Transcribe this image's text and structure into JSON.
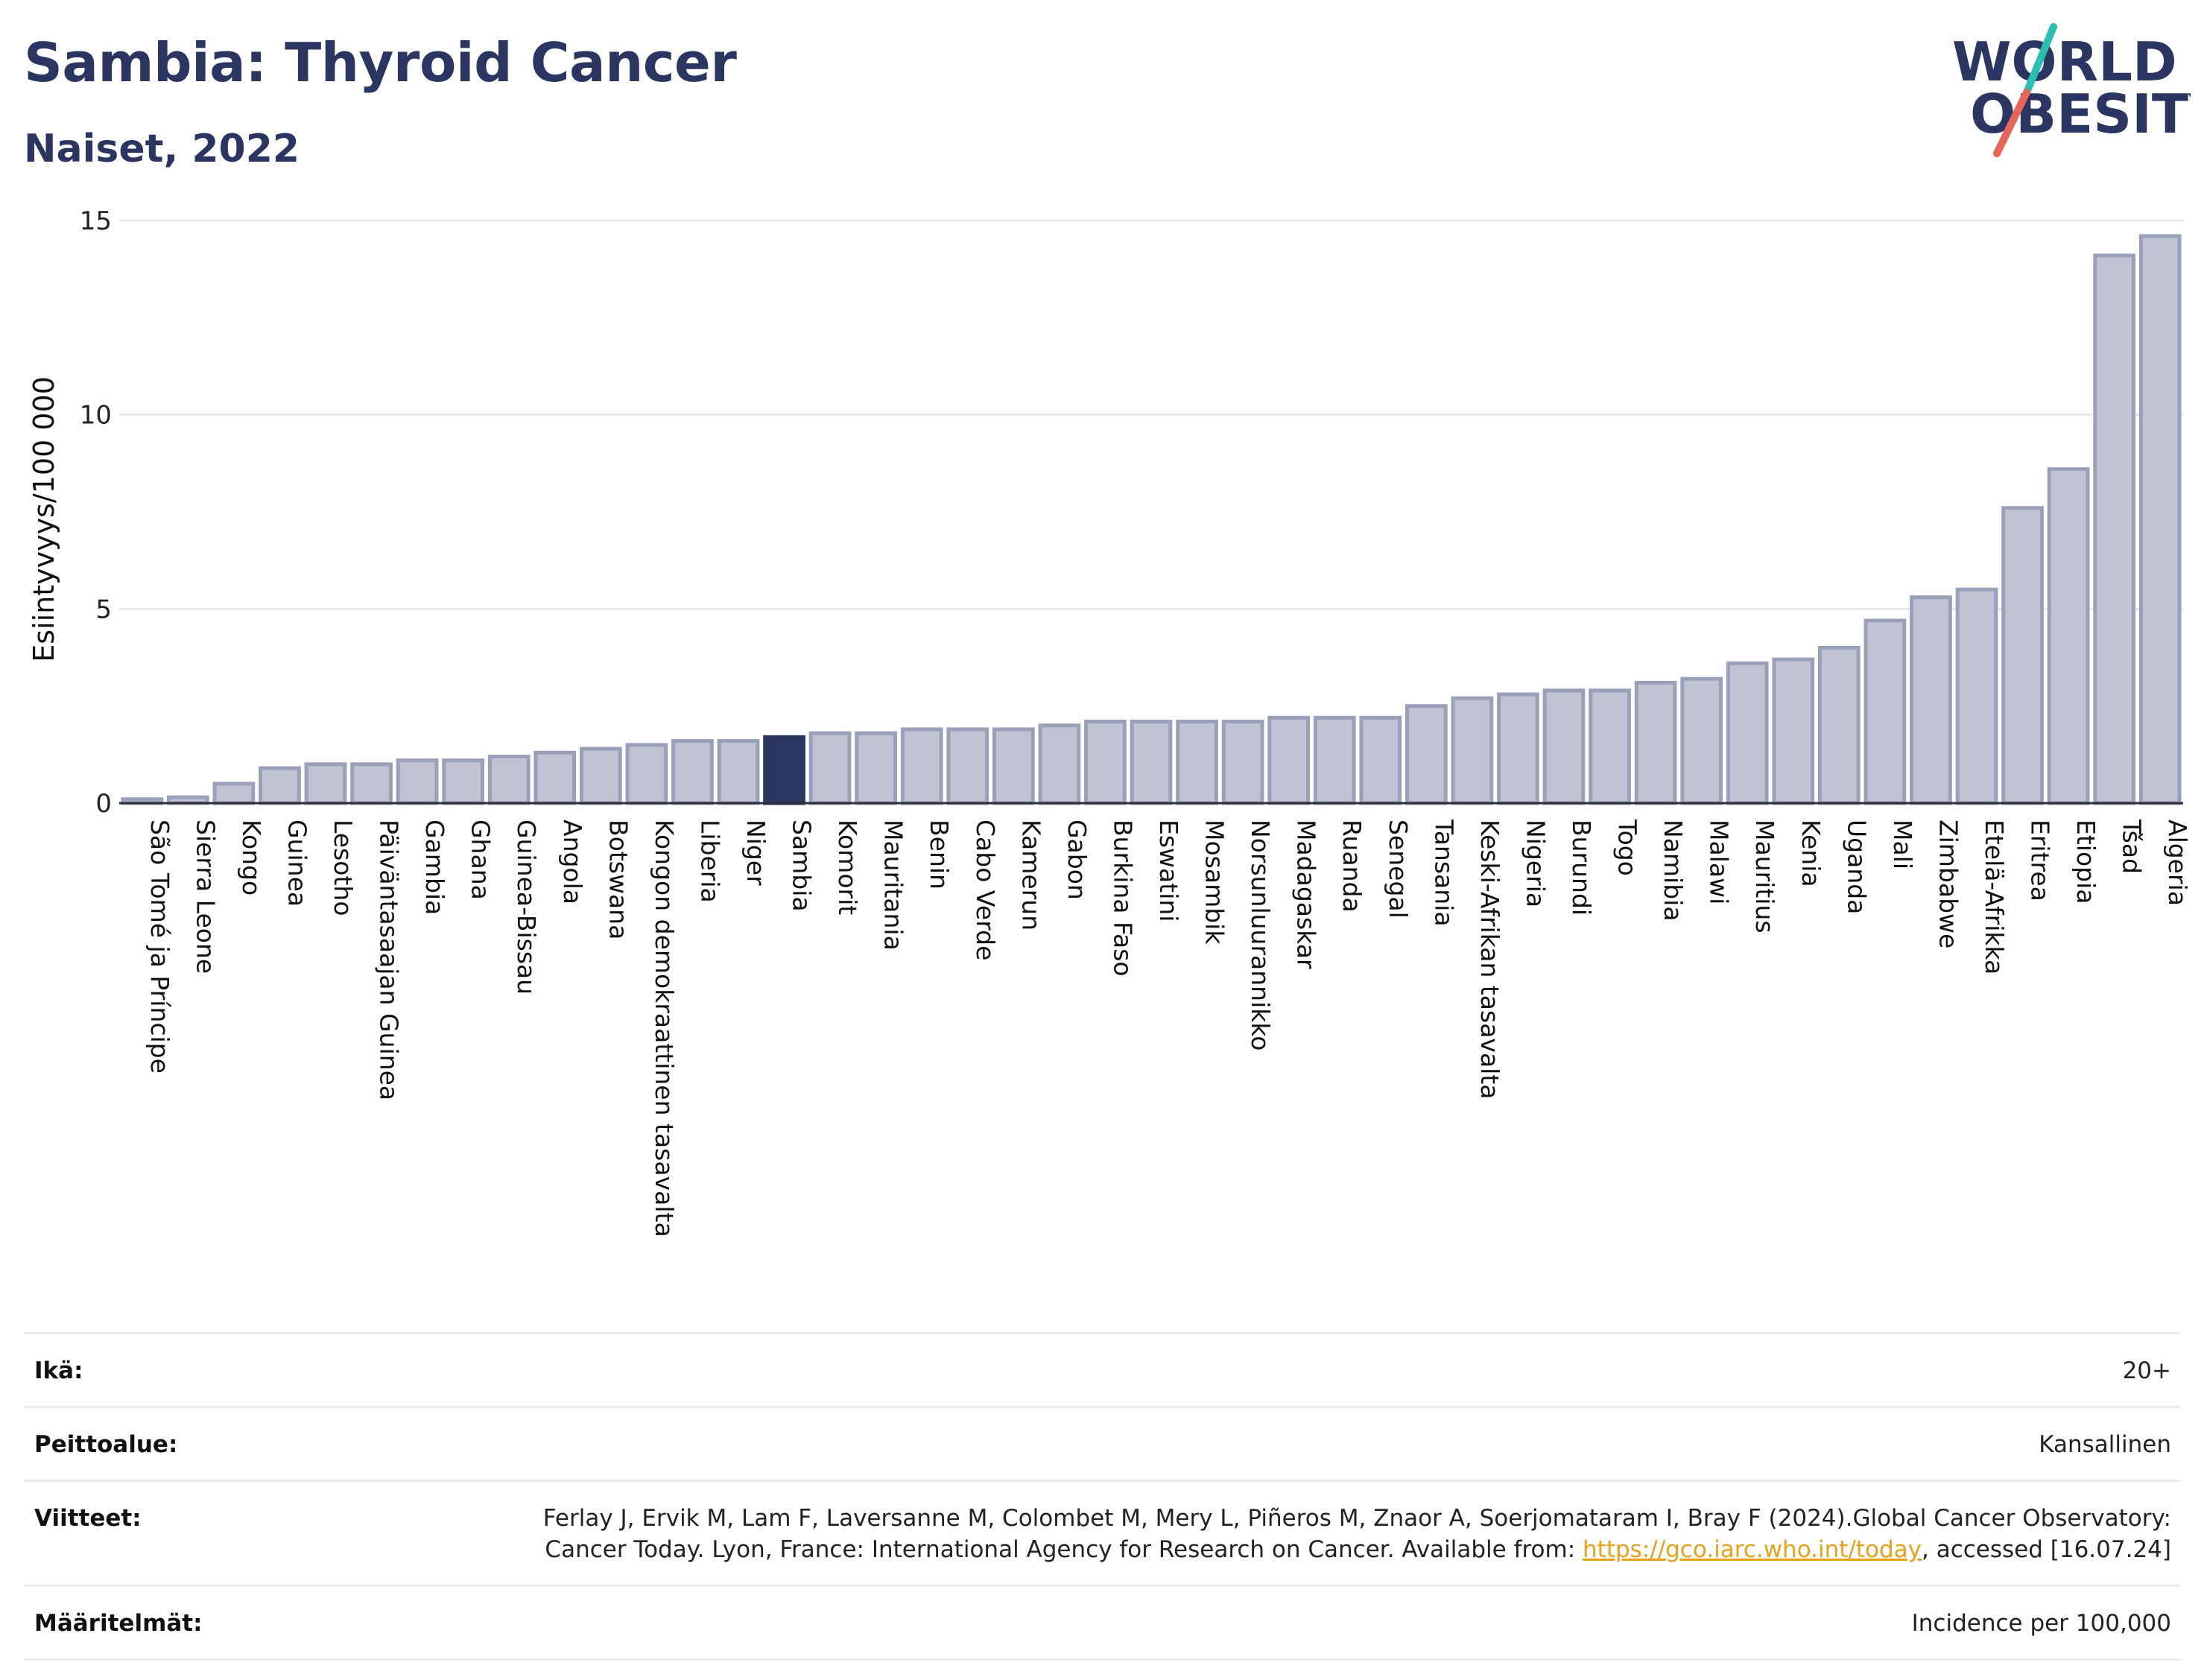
{
  "header": {
    "title": "Sambia: Thyroid Cancer",
    "subtitle": "Naiset, 2022"
  },
  "logo": {
    "line1": "WORLD",
    "line2": "OBESITY",
    "text_color": "#2b3562",
    "slash_top_color": "#2bbfb3",
    "slash_bottom_color": "#e8655a"
  },
  "chart_data": {
    "type": "bar",
    "ylabel": "Esiintyvyys/100 000",
    "ylim": [
      0,
      15
    ],
    "yticks": [
      0,
      5,
      10,
      15
    ],
    "grid": true,
    "highlight": "Sambia",
    "colors": {
      "bar": "#bfc3d2",
      "bar_border": "#9aa0ba",
      "highlight": "#2b3562"
    },
    "categories": [
      "São Tomé ja Príncipe",
      "Sierra Leone",
      "Kongo",
      "Guinea",
      "Lesotho",
      "Päiväntasaajan Guinea",
      "Gambia",
      "Ghana",
      "Guinea-Bissau",
      "Angola",
      "Botswana",
      "Kongon demokraattinen tasavalta",
      "Liberia",
      "Niger",
      "Sambia",
      "Komorit",
      "Mauritania",
      "Benin",
      "Cabo Verde",
      "Kamerun",
      "Gabon",
      "Burkina Faso",
      "Eswatini",
      "Mosambik",
      "Norsunluurannikko",
      "Madagaskar",
      "Ruanda",
      "Senegal",
      "Tansania",
      "Keski-Afrikan tasavalta",
      "Nigeria",
      "Burundi",
      "Togo",
      "Namibia",
      "Malawi",
      "Mauritius",
      "Kenia",
      "Uganda",
      "Mali",
      "Zimbabwe",
      "Etelä-Afrikka",
      "Eritrea",
      "Etiopia",
      "Tšad",
      "Algeria"
    ],
    "values": [
      0.1,
      0.15,
      0.5,
      0.9,
      1.0,
      1.0,
      1.1,
      1.1,
      1.2,
      1.3,
      1.4,
      1.5,
      1.6,
      1.6,
      1.7,
      1.8,
      1.8,
      1.9,
      1.9,
      1.9,
      2.0,
      2.1,
      2.1,
      2.1,
      2.1,
      2.2,
      2.2,
      2.2,
      2.5,
      2.7,
      2.8,
      2.9,
      2.9,
      3.1,
      3.2,
      3.6,
      3.7,
      4.0,
      4.7,
      5.3,
      5.5,
      7.6,
      8.6,
      14.1,
      14.6
    ]
  },
  "info": {
    "rows": [
      {
        "label": "Ikä:",
        "value": "20+"
      },
      {
        "label": "Peittoalue:",
        "value": "Kansallinen"
      },
      {
        "label": "Viitteet:",
        "value": "Ferlay J, Ervik M, Lam F, Laversanne M, Colombet M, Mery L, Piñeros M, Znaor A, Soerjomataram I, Bray F (2024).Global Cancer Observatory: Cancer Today. Lyon, France: International Agency for Research on Cancer. Available from: ",
        "link": "https://gco.iarc.who.int/today",
        "after": ", accessed [16.07.24]"
      },
      {
        "label": "Määritelmät:",
        "value": "Incidence per 100,000"
      }
    ]
  }
}
